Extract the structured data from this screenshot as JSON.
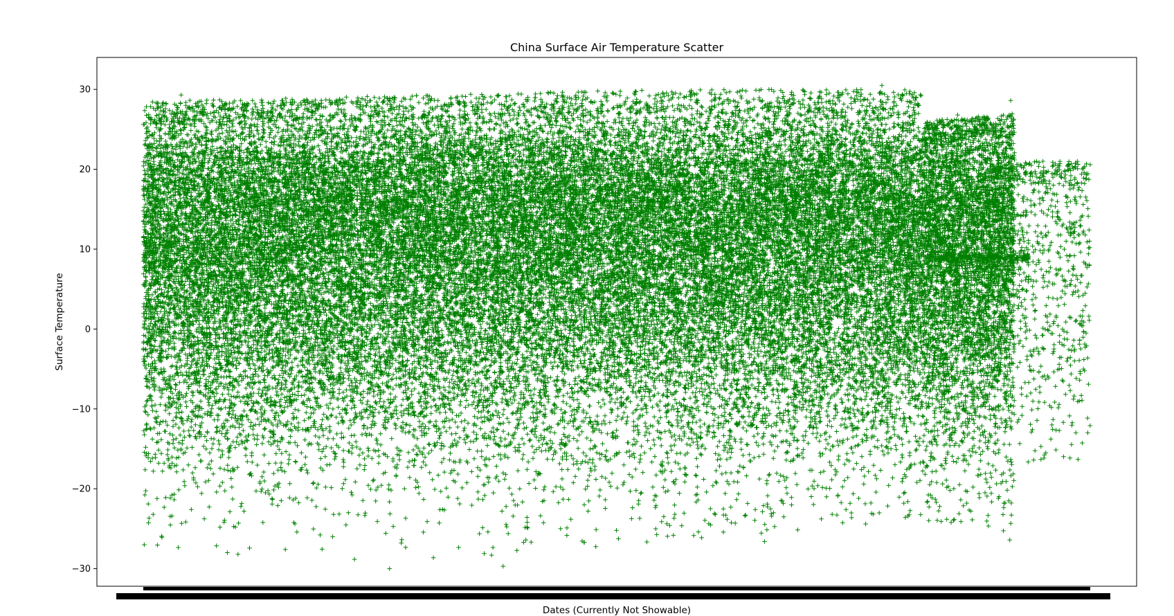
{
  "chart_data": {
    "type": "scatter",
    "title": "China Surface Air Temperature Scatter",
    "xlabel": "Dates (Currently Not Showable)",
    "ylabel": "Surface Temperature",
    "ylim": [
      -32.2,
      34
    ],
    "yticks": [
      -30,
      -20,
      -10,
      0,
      10,
      20,
      30
    ],
    "ytick_labels": [
      "−30",
      "−20",
      "−10",
      "0",
      "10",
      "20",
      "30"
    ],
    "x_tick_labels_shown": false,
    "grid": false,
    "legend": "none",
    "marker": "plus",
    "colors": {
      "points": "#008000",
      "axes": "#000000",
      "background": "#ffffff"
    },
    "series": [
      {
        "x_range_fraction": [
          0.0,
          0.822
        ],
        "y_max_envelope": [
          [
            0.0,
            28.5
          ],
          [
            0.3,
            29.3
          ],
          [
            0.55,
            30.0
          ],
          [
            0.822,
            30.0
          ]
        ],
        "y_min_envelope": [
          [
            0.0,
            -27
          ],
          [
            0.22,
            -30
          ],
          [
            0.4,
            -28
          ],
          [
            0.822,
            -24
          ]
        ],
        "density": "dense"
      },
      {
        "x_range_fraction": [
          0.822,
          0.92
        ],
        "y_max_envelope": [
          [
            0.822,
            26
          ],
          [
            0.92,
            27
          ]
        ],
        "y_min_envelope": [
          [
            0.822,
            -24
          ],
          [
            0.92,
            -26
          ]
        ],
        "density": "sparse"
      },
      {
        "x_range_fraction": [
          0.92,
          1.0
        ],
        "y_max_envelope": [
          [
            0.92,
            21
          ],
          [
            1.0,
            21
          ]
        ],
        "y_min_envelope": [
          [
            0.92,
            -17
          ],
          [
            1.0,
            -18
          ]
        ],
        "density": "very-sparse"
      }
    ],
    "sample_points": [
      [
        0.001,
        -27.0
      ],
      [
        0.26,
        -30.0
      ],
      [
        0.36,
        -28.1
      ],
      [
        0.1,
        -28.2
      ],
      [
        0.15,
        -27.6
      ],
      [
        0.656,
        -26.6
      ],
      [
        0.915,
        -26.4
      ],
      [
        0.78,
        30.5
      ],
      [
        0.04,
        29.3
      ],
      [
        0.48,
        29.8
      ],
      [
        0.86,
        26.8
      ],
      [
        0.916,
        28.6
      ],
      [
        0.95,
        21.0
      ],
      [
        0.2,
        -26.0
      ],
      [
        0.38,
        -29.7
      ]
    ]
  }
}
